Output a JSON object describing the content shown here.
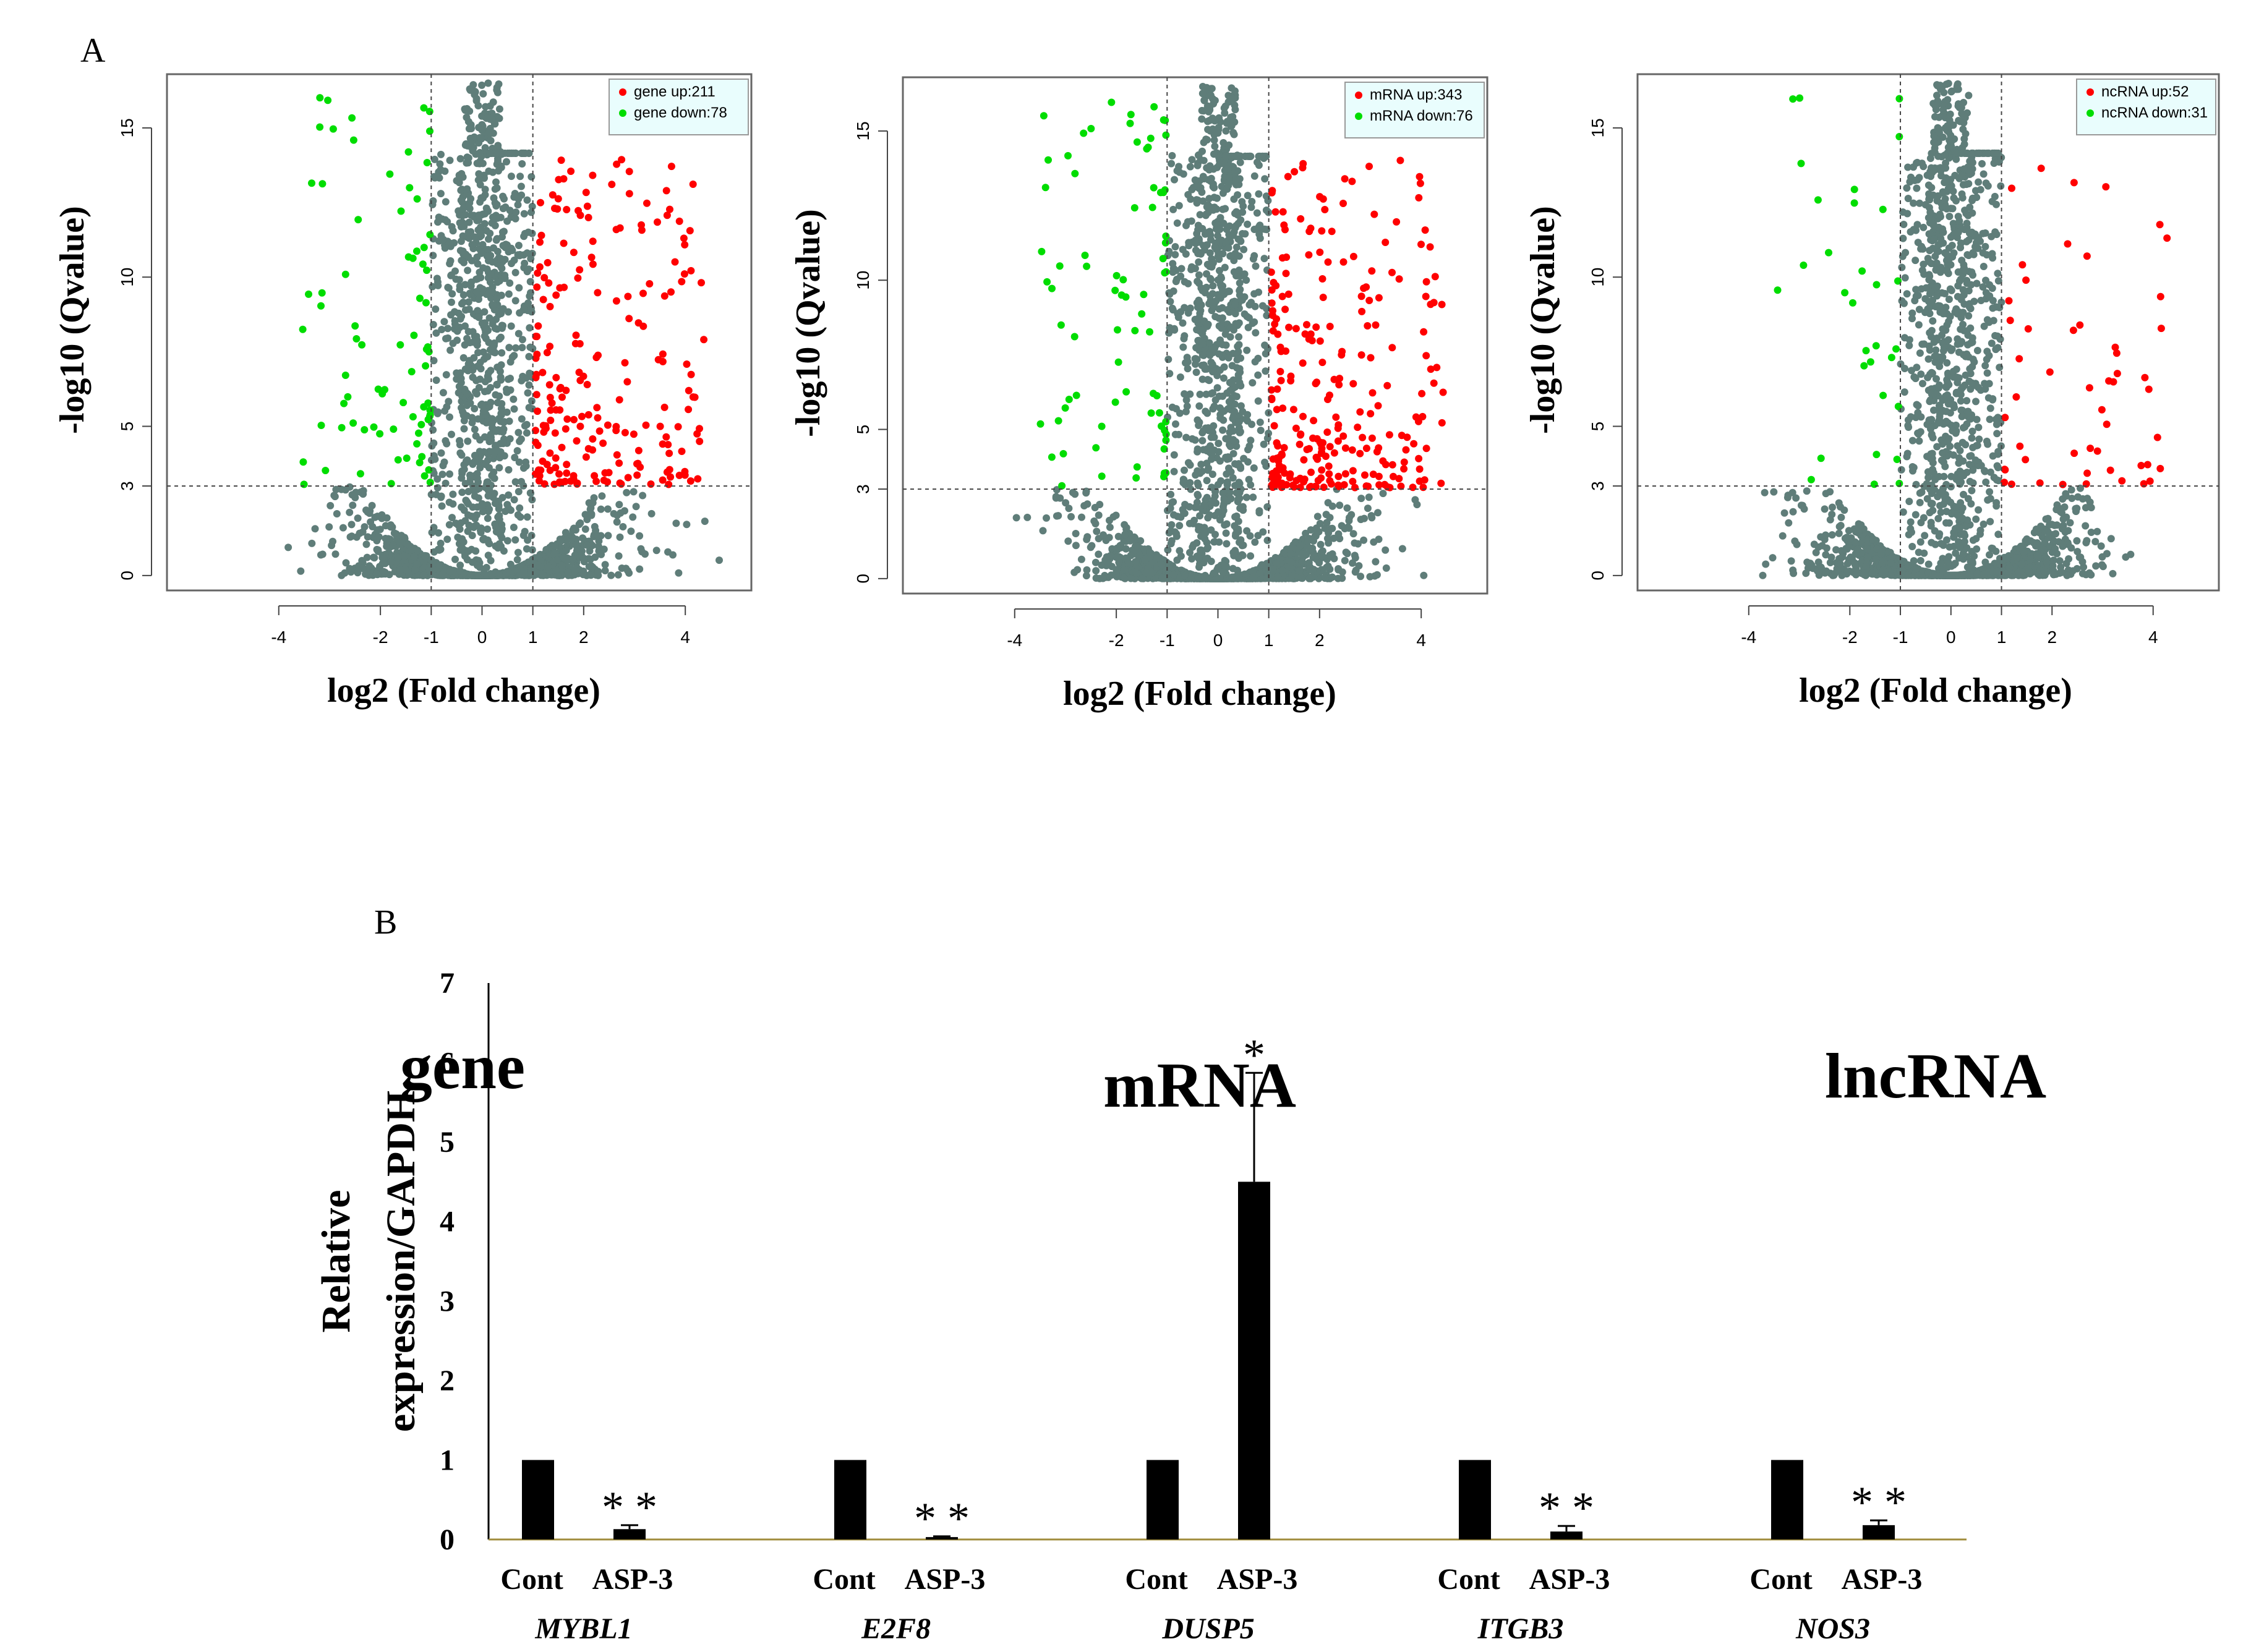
{
  "panel_labels": {
    "a": "A",
    "b": "B"
  },
  "colors": {
    "up": "#ff0000",
    "down": "#00dd00",
    "ns": "#5f7d79",
    "bar": "#000000",
    "baseline": "#a08c3c",
    "legend_bg": "#e9fdfd"
  },
  "chart_data": [
    {
      "type": "scatter",
      "title": "gene",
      "xlabel": "log2 (Fold change)",
      "ylabel": "-log10 (Qvalue)",
      "xlim": [
        -6.2,
        5.3
      ],
      "ylim": [
        -0.5,
        16.8
      ],
      "xticks": [
        "-4",
        "-2",
        "-1",
        "0",
        "1",
        "2",
        "4"
      ],
      "yticks": [
        "0",
        "3",
        "5",
        "10",
        "15"
      ],
      "thresholds": {
        "fold_change": [
          -1,
          1
        ],
        "qvalue": 3
      },
      "legend": [
        {
          "label": "gene up:211",
          "group": "up"
        },
        {
          "label": "gene down:78",
          "group": "down"
        }
      ],
      "counts": {
        "up": 211,
        "down": 78
      },
      "seed": 11
    },
    {
      "type": "scatter",
      "title": "mRNA",
      "xlabel": "log2 (Fold change)",
      "ylabel": "-log10 (Qvalue)",
      "xlim": [
        -6.2,
        5.3
      ],
      "ylim": [
        -0.5,
        16.8
      ],
      "xticks": [
        "-4",
        "-2",
        "-1",
        "0",
        "1",
        "2",
        "4"
      ],
      "yticks": [
        "0",
        "3",
        "5",
        "10",
        "15"
      ],
      "thresholds": {
        "fold_change": [
          -1,
          1
        ],
        "qvalue": 3
      },
      "legend": [
        {
          "label": "mRNA up:343",
          "group": "up"
        },
        {
          "label": "mRNA down:76",
          "group": "down"
        }
      ],
      "counts": {
        "up": 343,
        "down": 76
      },
      "seed": 23
    },
    {
      "type": "scatter",
      "title": "lncRNA",
      "xlabel": "log2 (Fold change)",
      "ylabel": "-log10 (Qvalue)",
      "xlim": [
        -6.2,
        5.3
      ],
      "ylim": [
        -0.5,
        16.8
      ],
      "xticks": [
        "-4",
        "-2",
        "-1",
        "0",
        "1",
        "2",
        "4"
      ],
      "yticks": [
        "0",
        "3",
        "5",
        "10",
        "15"
      ],
      "thresholds": {
        "fold_change": [
          -1,
          1
        ],
        "qvalue": 3
      },
      "legend": [
        {
          "label": "ncRNA up:52",
          "group": "up"
        },
        {
          "label": "ncRNA down:31",
          "group": "down"
        }
      ],
      "counts": {
        "up": 52,
        "down": 31
      },
      "seed": 37
    },
    {
      "type": "bar",
      "title": "",
      "ylabel_lines": [
        "Relative",
        "expression/GAPDH"
      ],
      "ylim": [
        0,
        7
      ],
      "yticks": [
        "0",
        "1",
        "2",
        "3",
        "4",
        "5",
        "6",
        "7"
      ],
      "series_names": [
        "Cont",
        "ASP-3"
      ],
      "groups": [
        {
          "gene": "MYBL1",
          "cont": 1.0,
          "asp3": 0.13,
          "cont_err": 0,
          "asp3_err": 0.05,
          "sig": "* *"
        },
        {
          "gene": "E2F8",
          "cont": 1.0,
          "asp3": 0.03,
          "cont_err": 0,
          "asp3_err": 0.01,
          "sig": "* *"
        },
        {
          "gene": "DUSP5",
          "cont": 1.0,
          "asp3": 4.5,
          "cont_err": 0,
          "asp3_err": 1.37,
          "sig": "*"
        },
        {
          "gene": "ITGB3",
          "cont": 1.0,
          "asp3": 0.1,
          "cont_err": 0,
          "asp3_err": 0.07,
          "sig": "* *"
        },
        {
          "gene": "NOS3",
          "cont": 1.0,
          "asp3": 0.18,
          "cont_err": 0,
          "asp3_err": 0.06,
          "sig": "* *"
        }
      ]
    }
  ]
}
